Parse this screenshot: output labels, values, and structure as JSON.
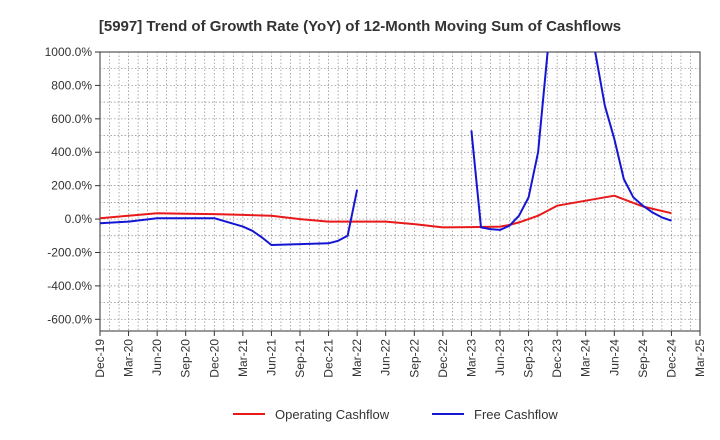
{
  "chart_data": {
    "type": "line",
    "title": "[5997]  Trend of Growth Rate (YoY) of 12-Month Moving Sum of Cashflows",
    "xlabel": "",
    "ylabel": "",
    "ylim": [
      -670,
      1000
    ],
    "y_ticks": [
      "1000.0%",
      "800.0%",
      "600.0%",
      "400.0%",
      "200.0%",
      "0.0%",
      "-200.0%",
      "-400.0%",
      "-600.0%"
    ],
    "y_tick_values": [
      1000,
      800,
      600,
      400,
      200,
      0,
      -200,
      -400,
      -600
    ],
    "x_ticks": [
      "Dec-19",
      "Mar-20",
      "Jun-20",
      "Sep-20",
      "Dec-20",
      "Mar-21",
      "Jun-21",
      "Sep-21",
      "Dec-21",
      "Mar-22",
      "Jun-22",
      "Sep-22",
      "Dec-22",
      "Mar-23",
      "Jun-23",
      "Sep-23",
      "Dec-23",
      "Mar-24",
      "Jun-24",
      "Sep-24",
      "Dec-24",
      "Mar-25"
    ],
    "grid": true,
    "legend_position": "bottom",
    "series": [
      {
        "name": "Operating Cashflow",
        "color": "#e8191a",
        "points": [
          [
            "Dec-19",
            5
          ],
          [
            "Mar-20",
            20
          ],
          [
            "Jun-20",
            35
          ],
          [
            "Sep-20",
            32
          ],
          [
            "Dec-20",
            30
          ],
          [
            "Mar-21",
            25
          ],
          [
            "Jun-21",
            20
          ],
          [
            "Sep-21",
            0
          ],
          [
            "Dec-21",
            -15
          ],
          [
            "Mar-22",
            -15
          ],
          [
            "Jun-22",
            -15
          ],
          [
            "Sep-22",
            -30
          ],
          [
            "Dec-22",
            -50
          ],
          [
            "Mar-23",
            -48
          ],
          [
            "Jun-23",
            -45
          ],
          [
            "Jul-23",
            -35
          ],
          [
            "Aug-23",
            -20
          ],
          [
            "Sep-23",
            0
          ],
          [
            "Oct-23",
            20
          ],
          [
            "Nov-23",
            50
          ],
          [
            "Dec-23",
            80
          ],
          [
            "Mar-24",
            110
          ],
          [
            "Jun-24",
            140
          ],
          [
            "Sep-24",
            75
          ],
          [
            "Dec-24",
            35
          ]
        ]
      },
      {
        "name": "Free Cashflow",
        "color": "#1515d4",
        "segments": [
          [
            [
              "Dec-19",
              -25
            ],
            [
              "Mar-20",
              -15
            ],
            [
              "Jun-20",
              5
            ],
            [
              "Sep-20",
              5
            ],
            [
              "Dec-20",
              5
            ],
            [
              "Mar-21",
              -45
            ],
            [
              "Apr-21",
              -70
            ],
            [
              "May-21",
              -110
            ],
            [
              "Jun-21",
              -155
            ],
            [
              "Sep-21",
              -150
            ],
            [
              "Dec-21",
              -145
            ],
            [
              "Jan-22",
              -130
            ],
            [
              "Feb-22",
              -100
            ],
            [
              "Mar-22",
              175
            ]
          ],
          [
            [
              "Mar-23",
              530
            ],
            [
              "Apr-23",
              -50
            ],
            [
              "May-23",
              -60
            ],
            [
              "Jun-23",
              -65
            ],
            [
              "Jul-23",
              -40
            ],
            [
              "Aug-23",
              20
            ],
            [
              "Sep-23",
              130
            ],
            [
              "Oct-23",
              400
            ],
            [
              "Nov-23",
              1050
            ]
          ],
          [
            [
              "Apr-24",
              1050
            ],
            [
              "May-24",
              680
            ],
            [
              "Jun-24",
              480
            ],
            [
              "Jul-24",
              240
            ],
            [
              "Aug-24",
              130
            ],
            [
              "Sep-24",
              80
            ],
            [
              "Oct-24",
              40
            ],
            [
              "Nov-24",
              10
            ],
            [
              "Dec-24",
              -10
            ]
          ]
        ]
      }
    ]
  }
}
